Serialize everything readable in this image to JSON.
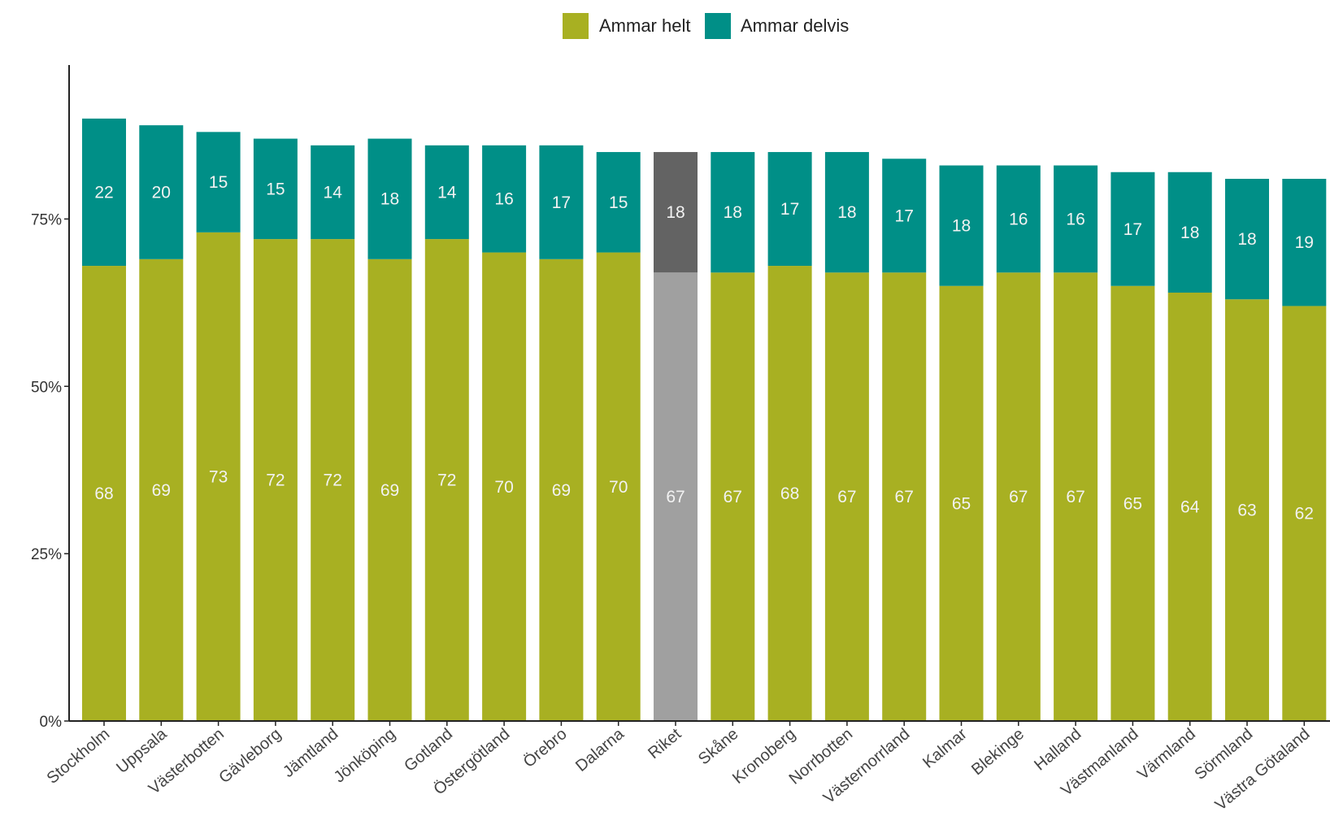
{
  "chart_data": {
    "type": "bar",
    "stacked": true,
    "categories": [
      "Stockholm",
      "Uppsala",
      "Västerbotten",
      "Gävleborg",
      "Jämtland",
      "Jönköping",
      "Gotland",
      "Östergötland",
      "Örebro",
      "Dalarna",
      "Riket",
      "Skåne",
      "Kronoberg",
      "Norrbotten",
      "Västernorrland",
      "Kalmar",
      "Blekinge",
      "Halland",
      "Västmanland",
      "Värmland",
      "Sörmland",
      "Västra Götaland"
    ],
    "series": [
      {
        "name": "Ammar helt",
        "color": "#a8b022",
        "values": [
          68,
          69,
          73,
          72,
          72,
          69,
          72,
          70,
          69,
          70,
          67,
          67,
          68,
          67,
          67,
          65,
          67,
          67,
          65,
          64,
          63,
          62
        ]
      },
      {
        "name": "Ammar delvis",
        "color": "#008f87",
        "values": [
          22,
          20,
          15,
          15,
          14,
          18,
          14,
          16,
          17,
          15,
          18,
          18,
          17,
          18,
          17,
          18,
          16,
          16,
          17,
          18,
          18,
          19
        ]
      }
    ],
    "highlight": {
      "category": "Riket",
      "colors": [
        "#a0a0a0",
        "#636363"
      ]
    },
    "y_ticks": [
      "0%",
      "25%",
      "50%",
      "75%"
    ],
    "y_tick_values": [
      0,
      25,
      50,
      75
    ],
    "ylim": [
      0,
      98
    ],
    "legend_position": "top",
    "grid": false,
    "data_labels": true
  }
}
